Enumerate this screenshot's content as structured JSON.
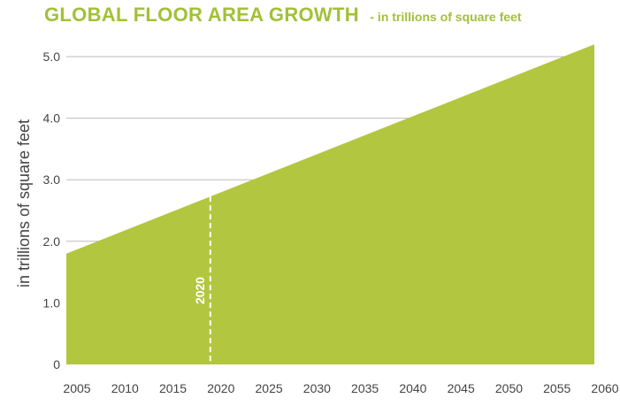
{
  "chart_data": {
    "type": "area",
    "title": "GLOBAL FLOOR AREA GROWTH",
    "subtitle": "- in trillions of square feet",
    "ylabel": "in trillions of square feet",
    "x": [
      2005,
      2060
    ],
    "values": [
      1.8,
      5.2
    ],
    "xlim": [
      2005,
      2060
    ],
    "ylim": [
      0,
      5.0
    ],
    "x_ticks": [
      "2005",
      "2010",
      "2015",
      "2020",
      "2025",
      "2030",
      "2035",
      "2040",
      "2045",
      "2050",
      "2055",
      "2060"
    ],
    "y_ticks": [
      "0",
      "1.0",
      "2.0",
      "3.0",
      "4.0",
      "5.0"
    ],
    "grid": true,
    "annotations": [
      {
        "x": 2020,
        "label": "2020",
        "style": "dashed-vertical-line"
      }
    ],
    "colors": {
      "fill": "#b3c63f",
      "title": "#a3c037",
      "grid": "#bbbbbb",
      "axis_text": "#444444"
    }
  }
}
